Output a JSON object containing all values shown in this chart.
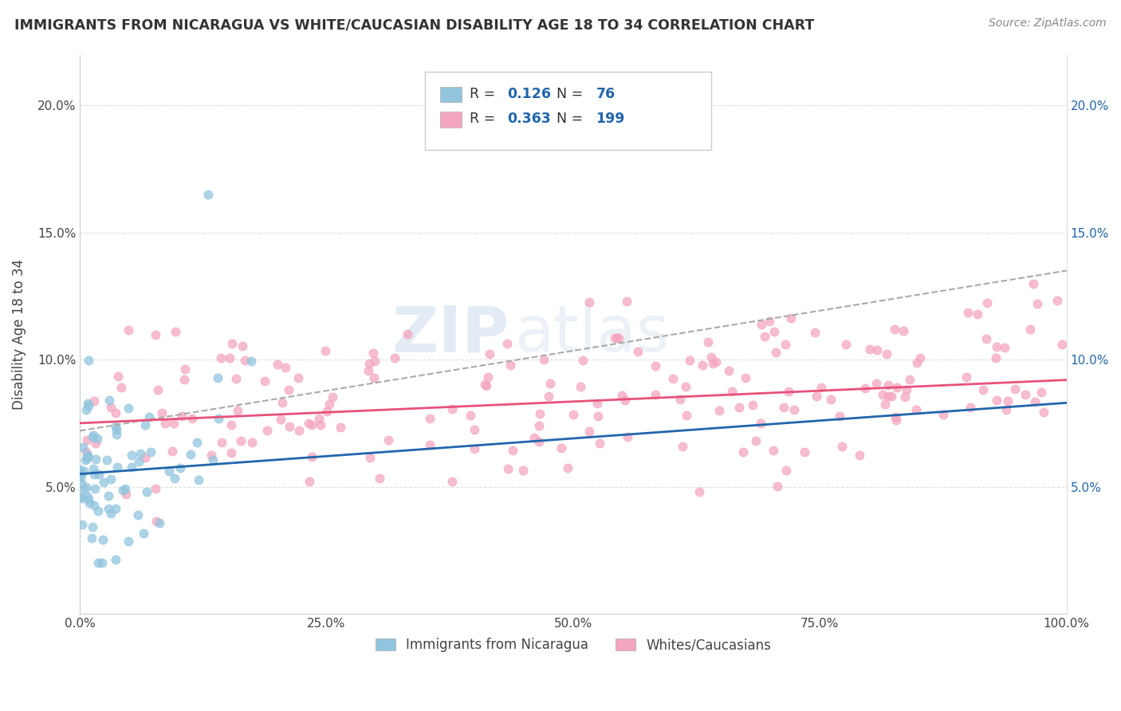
{
  "title": "IMMIGRANTS FROM NICARAGUA VS WHITE/CAUCASIAN DISABILITY AGE 18 TO 34 CORRELATION CHART",
  "source": "Source: ZipAtlas.com",
  "ylabel": "Disability Age 18 to 34",
  "blue_R": 0.126,
  "blue_N": 76,
  "pink_R": 0.363,
  "pink_N": 199,
  "blue_color": "#92c5de",
  "pink_color": "#f4a6c0",
  "blue_line_color": "#2166ac",
  "pink_line_color": "#e8527a",
  "trend_dashed_color": "#aaaaaa",
  "background_color": "#ffffff",
  "watermark_zip": "ZIP",
  "watermark_atlas": "atlas",
  "xlim": [
    0.0,
    1.0
  ],
  "ylim": [
    0.0,
    0.22
  ],
  "xticks": [
    0.0,
    0.25,
    0.5,
    0.75,
    1.0
  ],
  "xticklabels": [
    "0.0%",
    "25.0%",
    "50.0%",
    "75.0%",
    "100.0%"
  ],
  "yticks": [
    0.05,
    0.1,
    0.15,
    0.2
  ],
  "yticklabels": [
    "5.0%",
    "10.0%",
    "15.0%",
    "20.0%"
  ],
  "legend_blue_label": "Immigrants from Nicaragua",
  "legend_pink_label": "Whites/Caucasians",
  "blue_seed": 42,
  "pink_seed": 99,
  "blue_line_x0": 0.0,
  "blue_line_y0": 0.055,
  "blue_line_x1": 1.0,
  "blue_line_y1": 0.083,
  "pink_line_x0": 0.0,
  "pink_line_y0": 0.075,
  "pink_line_x1": 1.0,
  "pink_line_y1": 0.092,
  "dash_line_x0": 0.0,
  "dash_line_y0": 0.072,
  "dash_line_x1": 1.0,
  "dash_line_y1": 0.135
}
